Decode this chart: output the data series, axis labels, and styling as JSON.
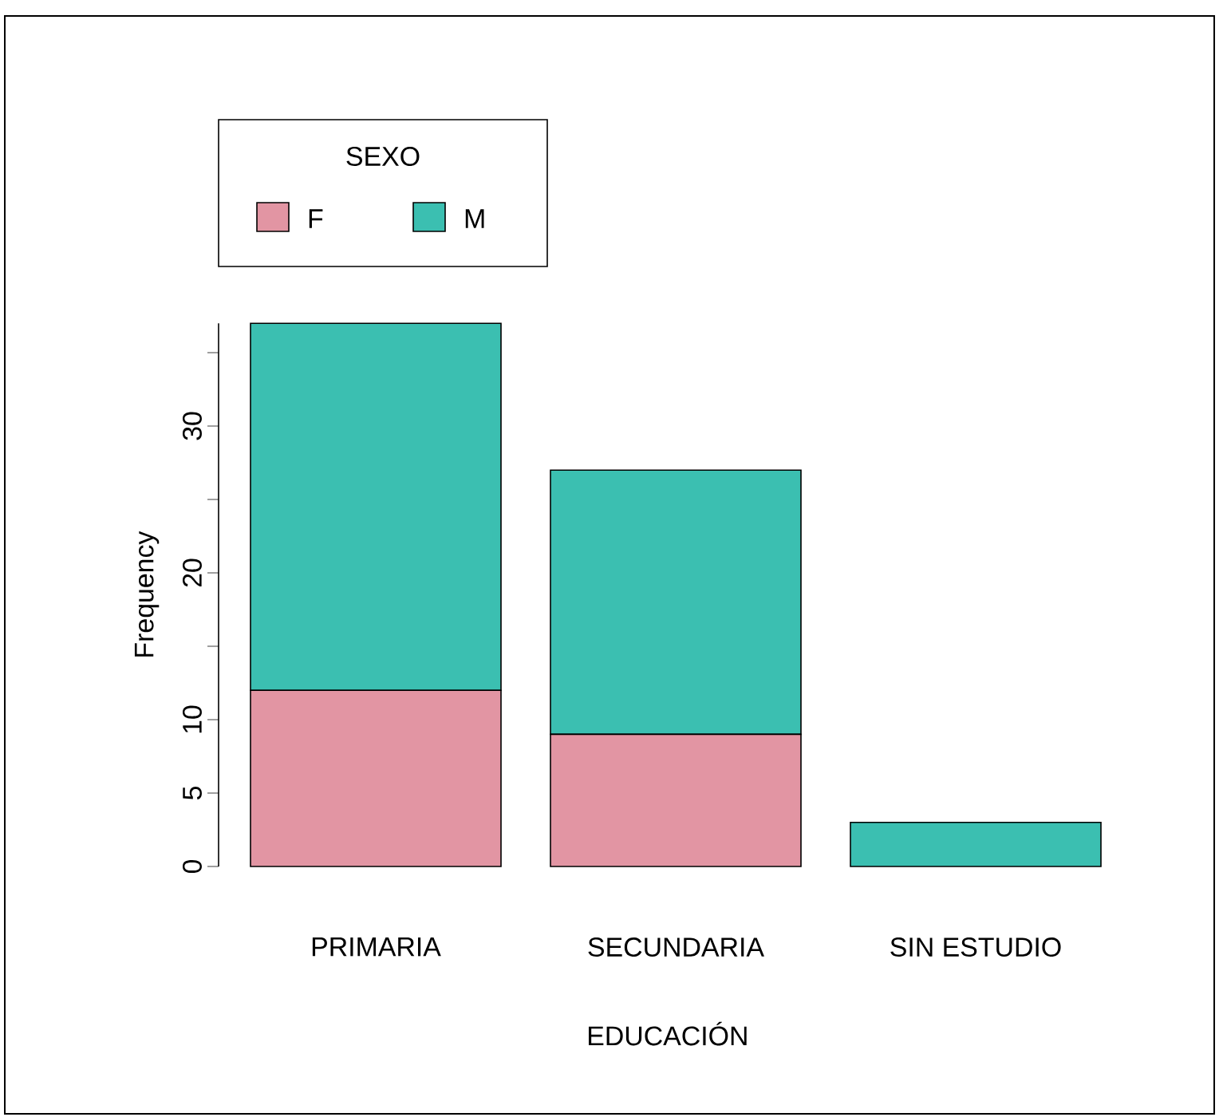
{
  "chart_data": {
    "type": "bar",
    "stacked": true,
    "xlabel": "EDUCACIÓN",
    "ylabel": "Frequency",
    "legend_title": "SEXO",
    "legend": "top left",
    "categories": [
      "PRIMARIA",
      "SECUNDARIA",
      "SIN ESTUDIO"
    ],
    "series": [
      {
        "name": "F",
        "color": "#e295a3",
        "values": [
          12,
          9,
          0
        ]
      },
      {
        "name": "M",
        "color": "#3bbfb1",
        "values": [
          25,
          18,
          3
        ]
      }
    ],
    "ylim": [
      0,
      37
    ],
    "yticks": [
      0,
      5,
      10,
      {
        "value": 15,
        "label": null
      },
      20,
      {
        "value": 25,
        "label": null
      },
      30,
      {
        "value": 35,
        "label": null
      }
    ],
    "grid": false
  }
}
